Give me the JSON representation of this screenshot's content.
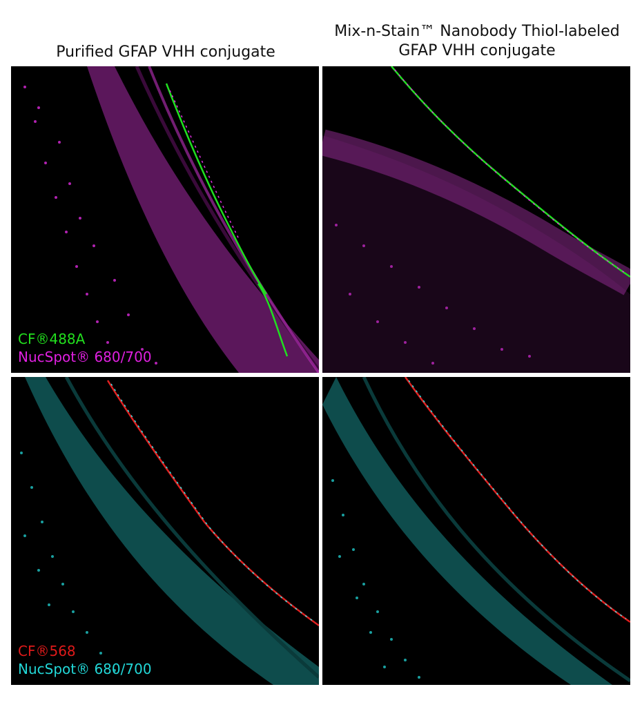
{
  "titles": {
    "left": "Purified GFAP VHH conjugate",
    "right_line1": "Mix-n-Stain™ Nanobody Thiol-labeled",
    "right_line2": "GFAP VHH conjugate"
  },
  "legends": {
    "top": {
      "label_a": "CF®488A",
      "label_b": "NucSpot® 680/700",
      "color_a": "#22e01e",
      "color_b": "#e020e0"
    },
    "bottom": {
      "label_a": "CF®568",
      "label_b": "NucSpot® 680/700",
      "color_a": "#e01a1a",
      "color_b": "#22d8d8"
    }
  }
}
